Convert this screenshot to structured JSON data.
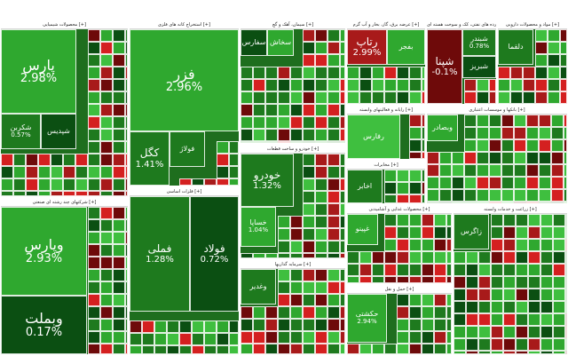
{
  "colors": {
    "dark_red": "#6e0a0a",
    "red": "#a81a1a",
    "bright_red": "#d42020",
    "dark_green": "#0b4f12",
    "green": "#1e7a1e",
    "bright_green": "#2fa82f",
    "light_green": "#3fbf3f"
  },
  "sectors": [
    {
      "name": "محصولات شیمیایی",
      "tiles": [
        {
          "symbol": "پارس",
          "change": "2.98%",
          "size": "big"
        },
        {
          "symbol": "شکربن",
          "change": "0.57%",
          "size": "sm"
        },
        {
          "symbol": "شپدیس",
          "change": "",
          "size": "sm"
        }
      ]
    },
    {
      "name": "استخراج کانه های فلزی",
      "tiles": [
        {
          "symbol": "فزر",
          "change": "2.96%",
          "size": "big"
        },
        {
          "symbol": "کگل",
          "change": "1.41%",
          "size": "med"
        },
        {
          "symbol": "فولاژ",
          "change": "",
          "size": "sm"
        }
      ]
    },
    {
      "name": "فلزات اساسی",
      "tiles": [
        {
          "symbol": "فملی",
          "change": "1.28%",
          "size": "med"
        },
        {
          "symbol": "فولاد",
          "change": "0.72%",
          "size": "med"
        }
      ]
    },
    {
      "name": "شرکتهای چند رشته ای صنعتی",
      "tiles": [
        {
          "symbol": "وپارس",
          "change": "2.93%",
          "size": "big"
        },
        {
          "symbol": "وبملت",
          "change": "0.17%",
          "size": "big"
        }
      ]
    },
    {
      "name": "سیمان، آهک و گچ",
      "tiles": [
        {
          "symbol": "سفارس",
          "change": "",
          "size": "sm"
        },
        {
          "symbol": "سخاش",
          "change": "",
          "size": "sm"
        }
      ]
    },
    {
      "name": "خودرو و ساخت قطعات",
      "tiles": [
        {
          "symbol": "خودرو",
          "change": "1.32%",
          "size": "med"
        },
        {
          "symbol": "خساپا",
          "change": "1.04%",
          "size": "sm"
        }
      ]
    },
    {
      "name": "رایانه و فعالیتهای وابسته",
      "tiles": [
        {
          "symbol": "رفارس",
          "change": "",
          "size": "sm"
        }
      ]
    },
    {
      "name": "مخابرات",
      "tiles": [
        {
          "symbol": "اخابر",
          "change": "",
          "size": "sm"
        }
      ]
    },
    {
      "name": "فراورده های نفتی، کک و سوخت هسته ای",
      "tiles": [
        {
          "symbol": "شپنا",
          "change": "-0.1%",
          "size": "med"
        },
        {
          "symbol": "شبندر",
          "change": "0.78%",
          "size": "sm"
        },
        {
          "symbol": "شبریز",
          "change": "",
          "size": "sm"
        }
      ]
    },
    {
      "name": "عرضه برق، گاز، بخار و آب گرم",
      "tiles": [
        {
          "symbol": "رتاپ",
          "change": "2.99%",
          "size": "med"
        },
        {
          "symbol": "بفجر",
          "change": "",
          "size": "sm"
        }
      ]
    },
    {
      "name": "مواد و محصولات دارویی",
      "tiles": [
        {
          "symbol": "دلقما",
          "change": "",
          "size": "sm"
        }
      ]
    },
    {
      "name": "بانکها و موسسات اعتباری",
      "tiles": [
        {
          "symbol": "وبصادر",
          "change": "",
          "size": "sm"
        }
      ]
    },
    {
      "name": "سرمایه گذاریها",
      "tiles": [
        {
          "symbol": "وغدیر",
          "change": "",
          "size": "sm"
        }
      ]
    },
    {
      "name": "محصولات غذایی و آشامیدنی",
      "tiles": [
        {
          "symbol": "غپینو",
          "change": "",
          "size": "sm"
        }
      ]
    },
    {
      "name": "حمل و نقل",
      "tiles": [
        {
          "symbol": "حکشتی",
          "change": "2.94%",
          "size": "sm"
        }
      ]
    },
    {
      "name": "زراعت و خدمات وابسته",
      "tiles": [
        {
          "symbol": "زاگرس",
          "change": "",
          "size": "sm"
        }
      ]
    }
  ]
}
